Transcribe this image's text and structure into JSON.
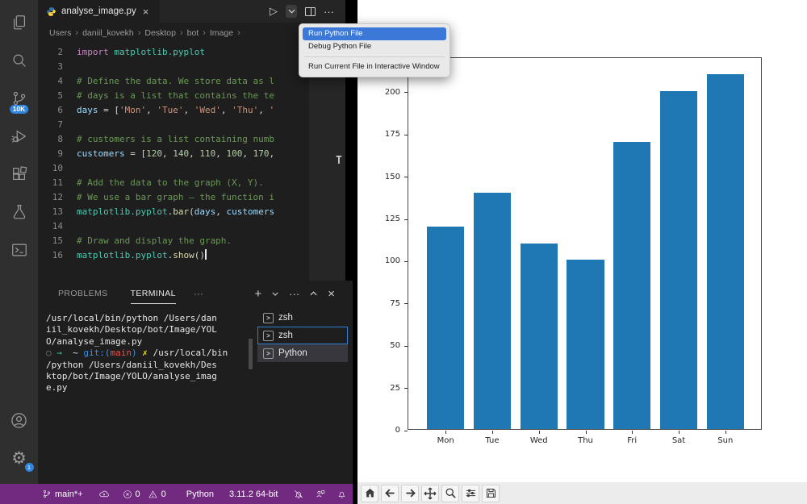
{
  "icons": {
    "close": "×",
    "ellipsis": "···",
    "add": "+",
    "sep": "›",
    "run": "▷",
    "prompt": ">",
    "gear": "⚙",
    "circle": "○"
  },
  "colors": {
    "statusbar": "#712a80",
    "badge": "#2f86e0",
    "selection_blue": "#3b78d7",
    "bar_color": "#1f77b4",
    "editor_bg": "#1e1e1e"
  },
  "activity_bar": {
    "scm_badge": "10K",
    "settings_badge": "1"
  },
  "tab_bar": {
    "title": "analyse_image.py"
  },
  "breadcrumbs": [
    "Users",
    "daniil_kovekh",
    "Desktop",
    "bot",
    "Image"
  ],
  "run_menu": {
    "items": [
      "Run Python File",
      "Debug Python File",
      "Run Current File in Interactive Window"
    ]
  },
  "editor": {
    "minimap_char": "T",
    "code_lines": [
      {
        "num": "2",
        "tokens": [
          [
            "kw",
            "import"
          ],
          [
            "pun",
            " "
          ],
          [
            "mod",
            "matplotlib.pyplot"
          ]
        ]
      },
      {
        "num": "3",
        "tokens": []
      },
      {
        "num": "4",
        "tokens": [
          [
            "com",
            "# Define the data. We store data as l"
          ]
        ]
      },
      {
        "num": "5",
        "tokens": [
          [
            "com",
            "# days is a list that contains the te"
          ]
        ]
      },
      {
        "num": "6",
        "tokens": [
          [
            "var",
            "days"
          ],
          [
            "pun",
            " = ["
          ],
          [
            "str",
            "'Mon'"
          ],
          [
            "pun",
            ", "
          ],
          [
            "str",
            "'Tue'"
          ],
          [
            "pun",
            ", "
          ],
          [
            "str",
            "'Wed'"
          ],
          [
            "pun",
            ", "
          ],
          [
            "str",
            "'Thu'"
          ],
          [
            "pun",
            ", "
          ],
          [
            "str",
            "'"
          ]
        ]
      },
      {
        "num": "7",
        "tokens": []
      },
      {
        "num": "8",
        "tokens": [
          [
            "com",
            "# customers is a list containing numb"
          ]
        ]
      },
      {
        "num": "9",
        "tokens": [
          [
            "var",
            "customers"
          ],
          [
            "pun",
            " = ["
          ],
          [
            "num",
            "120"
          ],
          [
            "pun",
            ", "
          ],
          [
            "num",
            "140"
          ],
          [
            "pun",
            ", "
          ],
          [
            "num",
            "110"
          ],
          [
            "pun",
            ", "
          ],
          [
            "num",
            "100"
          ],
          [
            "pun",
            ", "
          ],
          [
            "num",
            "170"
          ],
          [
            "pun",
            ","
          ]
        ]
      },
      {
        "num": "10",
        "tokens": []
      },
      {
        "num": "11",
        "tokens": [
          [
            "com",
            "# Add the data to the graph (X, Y)."
          ]
        ]
      },
      {
        "num": "12",
        "tokens": [
          [
            "com",
            "# We use a bar graph — the function i"
          ]
        ]
      },
      {
        "num": "13",
        "tokens": [
          [
            "mod",
            "matplotlib.pyplot"
          ],
          [
            "pun",
            "."
          ],
          [
            "fn",
            "bar"
          ],
          [
            "pun",
            "("
          ],
          [
            "var",
            "days"
          ],
          [
            "pun",
            ", "
          ],
          [
            "var",
            "customers"
          ]
        ]
      },
      {
        "num": "14",
        "tokens": []
      },
      {
        "num": "15",
        "tokens": [
          [
            "com",
            "# Draw and display the graph."
          ]
        ]
      },
      {
        "num": "16",
        "tokens": [
          [
            "mod",
            "matplotlib.pyplot"
          ],
          [
            "pun",
            "."
          ],
          [
            "fn",
            "show"
          ],
          [
            "pun",
            "()"
          ]
        ],
        "caret": true
      }
    ]
  },
  "panel": {
    "tabs": {
      "problems": "PROBLEMS",
      "terminal": "TERMINAL"
    },
    "terminal_list": [
      {
        "label": "zsh"
      },
      {
        "label": "zsh"
      },
      {
        "label": "Python"
      }
    ],
    "output_lines": [
      [
        [
          "fg",
          "/usr/local/bin/python /Users/dan"
        ]
      ],
      [
        [
          "fg",
          "iil_kovekh/Desktop/bot/Image/YOL"
        ]
      ],
      [
        [
          "fg",
          "O/analyse_image.py"
        ]
      ],
      [
        [
          "deco",
          "○ "
        ],
        [
          "green",
          "→"
        ],
        [
          "fg",
          "  ~ "
        ],
        [
          "blue",
          "git:("
        ],
        [
          "red",
          "main"
        ],
        [
          "blue",
          ")"
        ],
        [
          "yellow",
          " ✗"
        ],
        [
          "fg",
          " /usr/local/bin"
        ]
      ],
      [
        [
          "fg",
          "/python /Users/daniil_kovekh/Des"
        ]
      ],
      [
        [
          "fg",
          "ktop/bot/Image/YOLO/analyse_imag"
        ]
      ],
      [
        [
          "fg",
          "e.py"
        ]
      ]
    ]
  },
  "status_bar": {
    "branch": "main*+",
    "errors": "0",
    "warnings": "0",
    "language": "Python",
    "version": "3.11.2 64-bit"
  },
  "chart_data": {
    "type": "bar",
    "categories": [
      "Mon",
      "Tue",
      "Wed",
      "Thu",
      "Fri",
      "Sat",
      "Sun"
    ],
    "values": [
      120,
      140,
      110,
      100,
      170,
      200,
      210
    ],
    "title": "",
    "xlabel": "",
    "ylabel": "",
    "yticks": [
      0,
      25,
      50,
      75,
      100,
      125,
      150,
      175,
      200
    ],
    "ylim": [
      0,
      220.5
    ],
    "xlim": [
      -0.8,
      6.8
    ],
    "bar_width_units": 0.8,
    "bar_color": "#1f77b4",
    "grid": false,
    "legend": null
  }
}
